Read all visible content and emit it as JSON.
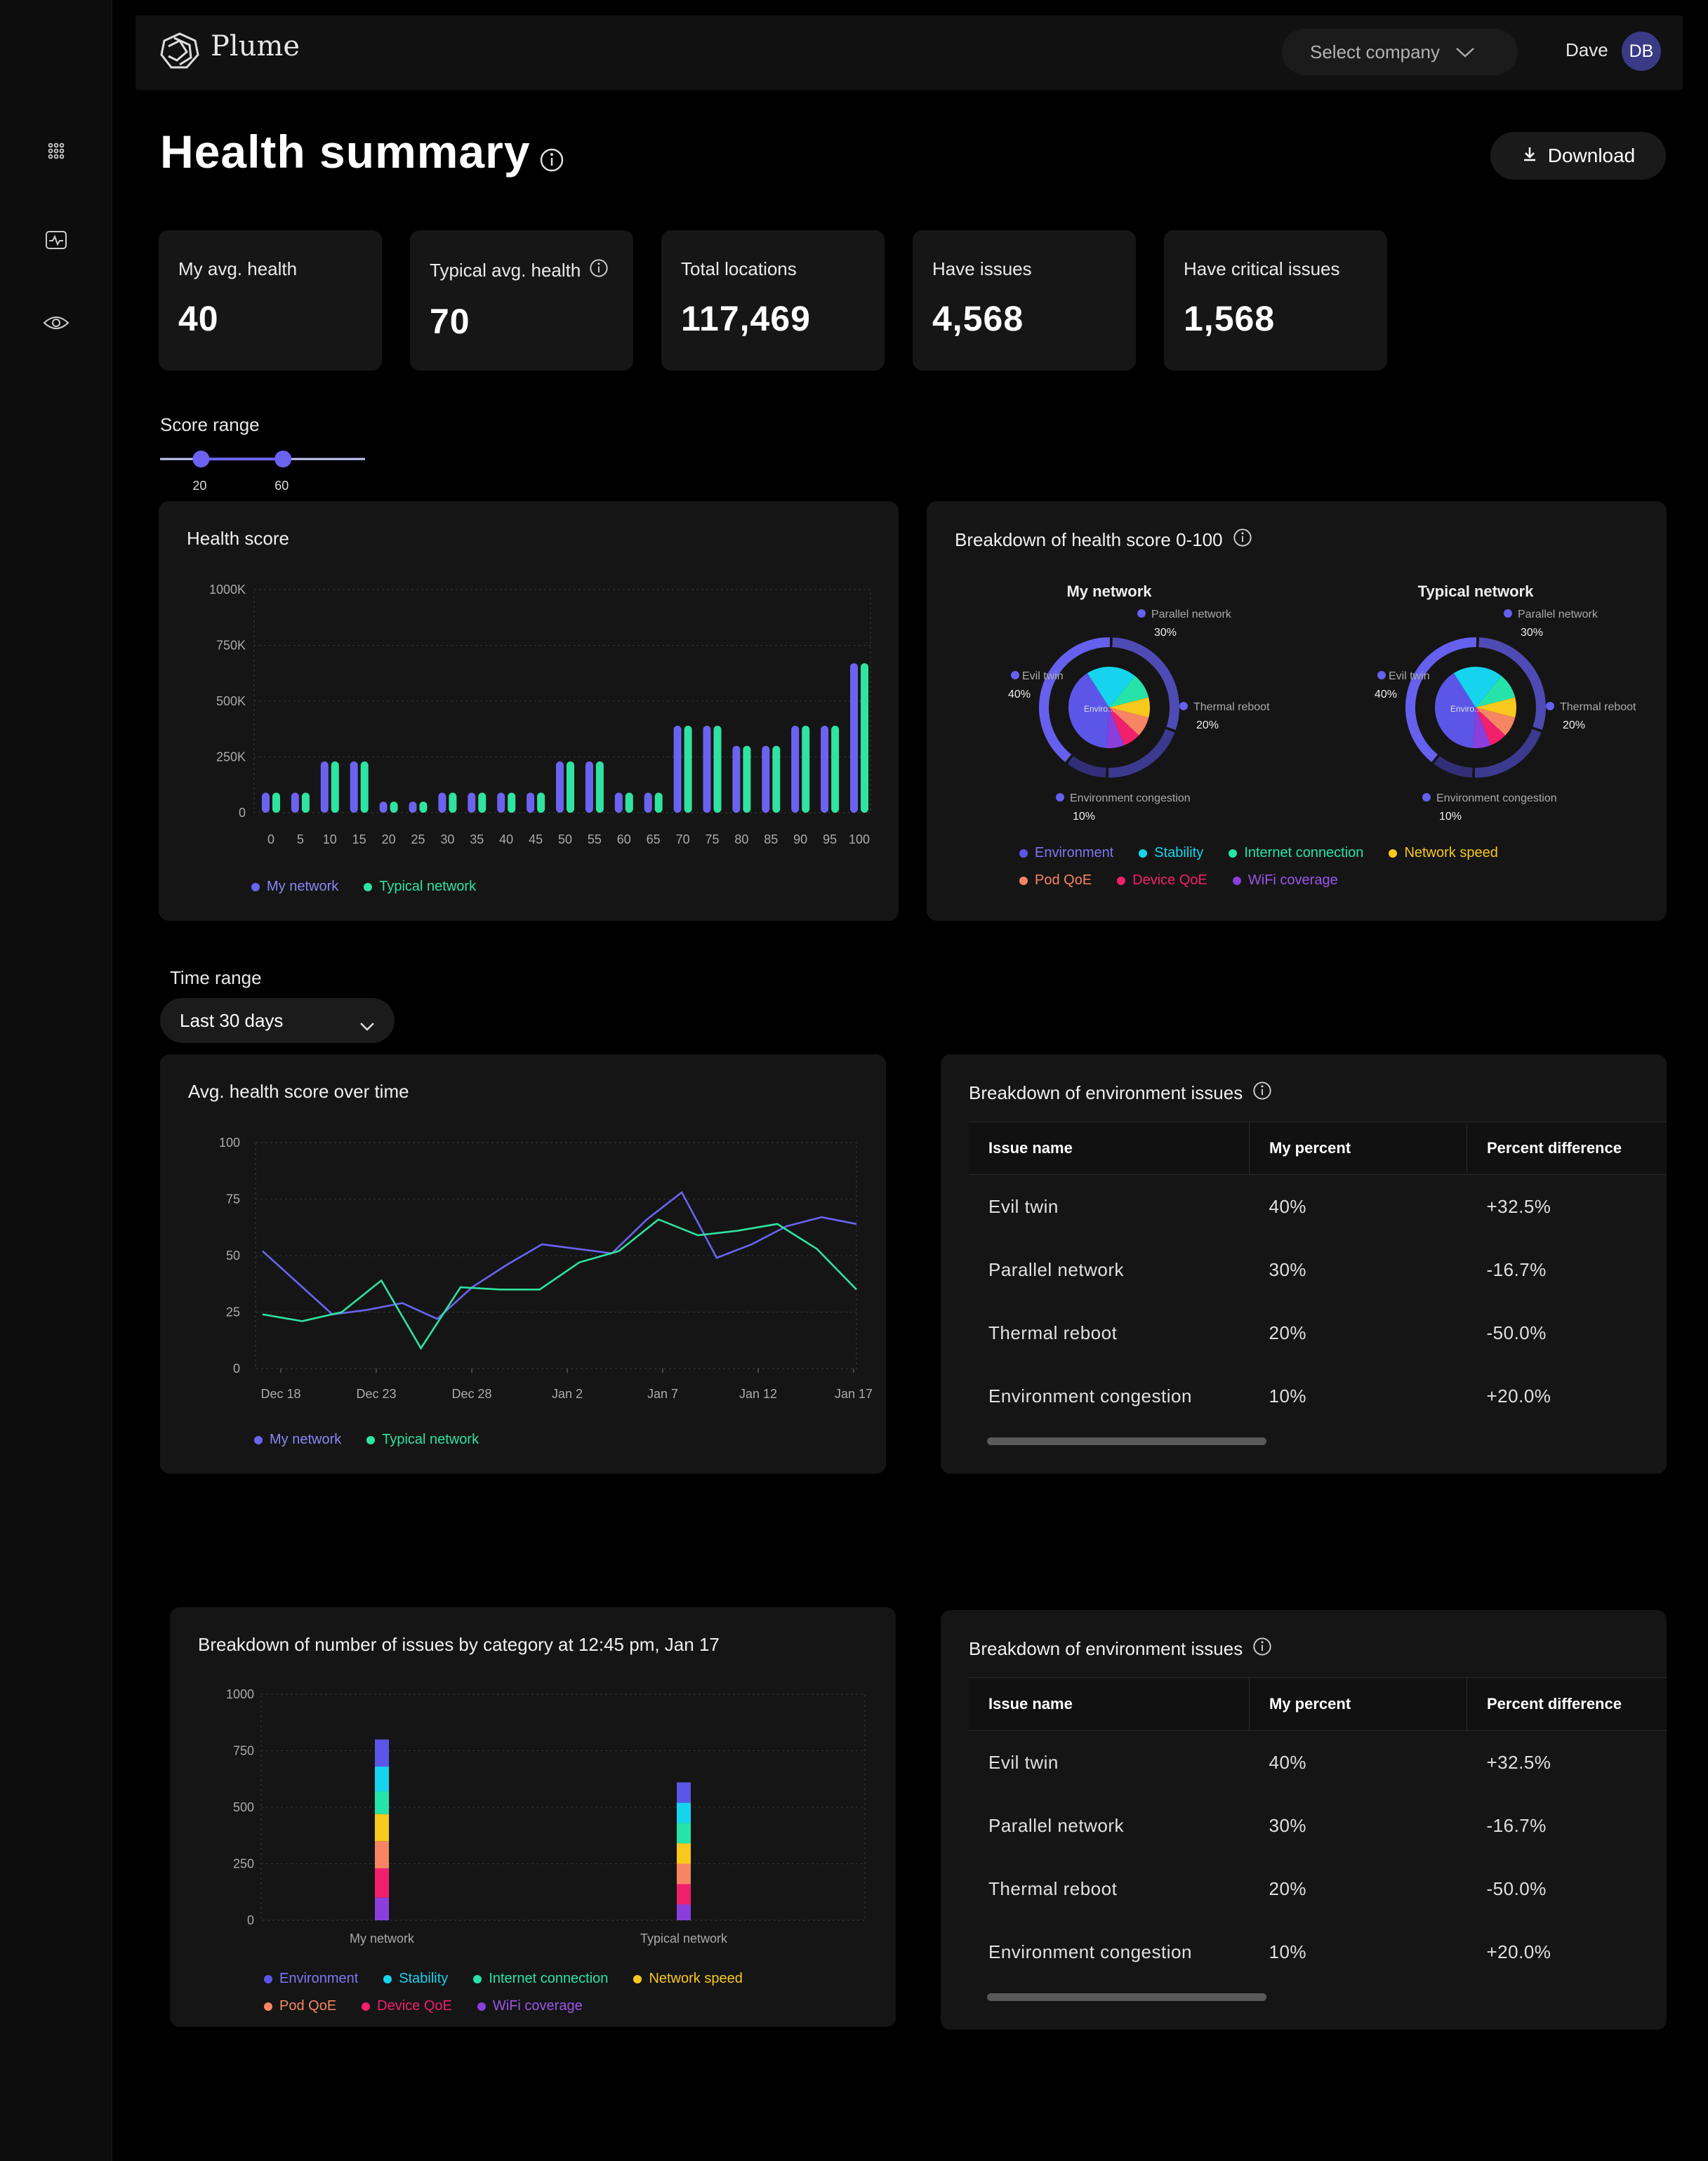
{
  "header": {
    "logo_text": "Plume",
    "select_company": "Select company",
    "user_name": "Dave",
    "user_initials": "DB"
  },
  "sidebar": {
    "icons": [
      "apps-grid-icon",
      "health-monitor-icon",
      "eye-icon"
    ]
  },
  "page": {
    "title": "Health summary",
    "download_label": "Download"
  },
  "kpis": [
    {
      "label": "My avg. health",
      "value": "40"
    },
    {
      "label": "Typical avg. health",
      "value": "70",
      "info": true
    },
    {
      "label": "Total locations",
      "value": "117,469"
    },
    {
      "label": "Have issues",
      "value": "4,568"
    },
    {
      "label": "Have critical issues",
      "value": "1,568"
    }
  ],
  "score_range": {
    "label": "Score range",
    "min_label": "20",
    "max_label": "60",
    "min": 20,
    "max": 60
  },
  "colors": {
    "my_network": "#6b63f0",
    "typical_network": "#2fe3a0",
    "environment": "#5b56e8",
    "stability": "#16d4ee",
    "internet_connection": "#26e4a9",
    "network_speed": "#f8c81c",
    "pod_qoe": "#f78563",
    "device_qoe": "#f0206d",
    "wifi_coverage": "#8a3fdc"
  },
  "legend_two": {
    "my_network": "My network",
    "typical_network": "Typical network"
  },
  "legend_categories": {
    "environment": "Environment",
    "stability": "Stability",
    "internet_connection": "Internet connection",
    "network_speed": "Network speed",
    "pod_qoe": "Pod QoE",
    "device_qoe": "Device QoE",
    "wifi_coverage": "WiFi coverage"
  },
  "chart_data": [
    {
      "type": "bar",
      "title": "Health score",
      "categories": [
        "0",
        "5",
        "10",
        "15",
        "20",
        "25",
        "30",
        "35",
        "40",
        "45",
        "50",
        "55",
        "60",
        "65",
        "70",
        "75",
        "80",
        "85",
        "90",
        "95",
        "100"
      ],
      "y_ticks": [
        "0",
        "250K",
        "500K",
        "750K",
        "1000K"
      ],
      "ylim": [
        0,
        1000000
      ],
      "series": [
        {
          "name": "My network",
          "values": [
            90000,
            90000,
            230000,
            230000,
            50000,
            50000,
            90000,
            90000,
            90000,
            90000,
            230000,
            230000,
            90000,
            90000,
            390000,
            390000,
            300000,
            300000,
            390000,
            390000,
            670000
          ]
        },
        {
          "name": "Typical network",
          "values": [
            90000,
            90000,
            230000,
            230000,
            50000,
            50000,
            90000,
            90000,
            90000,
            90000,
            230000,
            230000,
            90000,
            90000,
            390000,
            390000,
            300000,
            300000,
            390000,
            390000,
            670000
          ]
        }
      ]
    },
    {
      "type": "pie",
      "title": "Breakdown of health score 0-100",
      "charts": [
        {
          "name": "My network",
          "center_label": "Enviro...",
          "outer": [
            {
              "label": "Parallel network",
              "pct": "30%",
              "value": 30
            },
            {
              "label": "Thermal reboot",
              "pct": "20%",
              "value": 20
            },
            {
              "label": "Environment congestion",
              "pct": "10%",
              "value": 10
            },
            {
              "label": "Evil twin",
              "pct": "40%",
              "value": 40
            }
          ],
          "inner": [
            {
              "category": "environment",
              "value": 40
            },
            {
              "category": "stability",
              "value": 20
            },
            {
              "category": "internet_connection",
              "value": 10
            },
            {
              "category": "network_speed",
              "value": 8
            },
            {
              "category": "pod_qoe",
              "value": 8
            },
            {
              "category": "device_qoe",
              "value": 7
            },
            {
              "category": "wifi_coverage",
              "value": 7
            }
          ]
        },
        {
          "name": "Typical network",
          "center_label": "Enviro...",
          "outer": [
            {
              "label": "Parallel network",
              "pct": "30%",
              "value": 30
            },
            {
              "label": "Thermal reboot",
              "pct": "20%",
              "value": 20
            },
            {
              "label": "Environment congestion",
              "pct": "10%",
              "value": 10
            },
            {
              "label": "Evil twin",
              "pct": "40%",
              "value": 40
            }
          ],
          "inner": [
            {
              "category": "environment",
              "value": 40
            },
            {
              "category": "stability",
              "value": 20
            },
            {
              "category": "internet_connection",
              "value": 10
            },
            {
              "category": "network_speed",
              "value": 8
            },
            {
              "category": "pod_qoe",
              "value": 8
            },
            {
              "category": "device_qoe",
              "value": 7
            },
            {
              "category": "wifi_coverage",
              "value": 7
            }
          ]
        }
      ]
    },
    {
      "type": "line",
      "title": "Avg. health score over time",
      "x_ticks": [
        "Dec 18",
        "Dec 23",
        "Dec 28",
        "Jan 2",
        "Jan 7",
        "Jan 12",
        "Jan 17"
      ],
      "y_ticks": [
        "0",
        "25",
        "50",
        "75",
        "100"
      ],
      "ylim": [
        0,
        100
      ],
      "series": [
        {
          "name": "My network",
          "values": [
            52,
            38,
            24,
            26,
            29,
            22,
            36,
            46,
            55,
            53,
            51,
            66,
            78,
            49,
            55,
            63,
            67,
            64
          ]
        },
        {
          "name": "Typical network",
          "values": [
            24,
            21,
            25,
            39,
            9,
            36,
            35,
            35,
            47,
            52,
            66,
            59,
            61,
            64,
            53,
            35
          ]
        }
      ]
    },
    {
      "type": "bar",
      "stacked": true,
      "title": "Breakdown of number of issues by category at 12:45 pm, Jan 17",
      "categories": [
        "My network",
        "Typical network"
      ],
      "y_ticks": [
        "0",
        "250",
        "500",
        "750",
        "1000"
      ],
      "ylim": [
        0,
        1000
      ],
      "series": [
        {
          "category": "wifi_coverage",
          "values": [
            100,
            70
          ]
        },
        {
          "category": "device_qoe",
          "values": [
            130,
            90
          ]
        },
        {
          "category": "pod_qoe",
          "values": [
            120,
            90
          ]
        },
        {
          "category": "network_speed",
          "values": [
            120,
            90
          ]
        },
        {
          "category": "internet_connection",
          "values": [
            100,
            90
          ]
        },
        {
          "category": "stability",
          "values": [
            110,
            90
          ]
        },
        {
          "category": "environment",
          "values": [
            120,
            90
          ]
        }
      ]
    }
  ],
  "time_range": {
    "label": "Time range",
    "value": "Last 30 days"
  },
  "env_table": {
    "title": "Breakdown of environment issues",
    "headers": [
      "Issue name",
      "My percent",
      "Percent difference"
    ],
    "rows": [
      [
        "Evil twin",
        "40%",
        "+32.5%"
      ],
      [
        "Parallel network",
        "30%",
        "-16.7%"
      ],
      [
        "Thermal reboot",
        "20%",
        "-50.0%"
      ],
      [
        "Environment congestion",
        "10%",
        "+20.0%"
      ]
    ]
  }
}
